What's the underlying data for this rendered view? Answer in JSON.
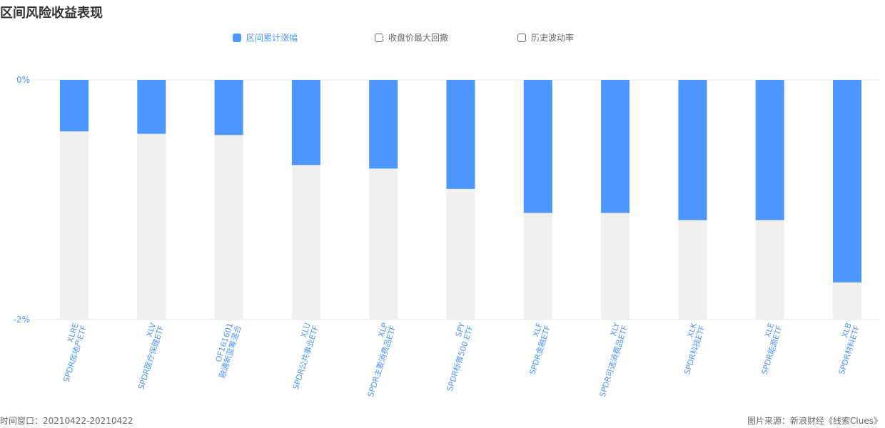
{
  "page": {
    "title": "区间风险收益表现",
    "footer_left": "时间窗口：20210422-20210422",
    "footer_right": "图片来源：新浪财经《线索Clues》"
  },
  "legend": [
    {
      "label": "区间累计涨幅",
      "active": true
    },
    {
      "label": "收盘价最大回撤",
      "active": false
    },
    {
      "label": "历史波动率",
      "active": false
    }
  ],
  "colors": {
    "bar": "#4d96ff",
    "bar_background": "#f0f0f0",
    "axis_text": "#4d96ff",
    "axis_line": "#d6e6f2"
  },
  "chart_data": {
    "type": "bar",
    "title": "",
    "ylabel": "",
    "xlabel": "",
    "ylim": [
      -2,
      0
    ],
    "y_ticks": [
      "0%",
      "-2%"
    ],
    "categories": [
      {
        "code": "XLRE",
        "name": "SPDR房地产ETF"
      },
      {
        "code": "XLV",
        "name": "SPDR医疗保健ETF"
      },
      {
        "code": "OF161601",
        "name": "融通新蓝筹混合"
      },
      {
        "code": "XLU",
        "name": "SPDR公共事业ETF"
      },
      {
        "code": "XLP",
        "name": "SPDR主要消费品ETF"
      },
      {
        "code": "SPY",
        "name": "SPDR标普500 ETF"
      },
      {
        "code": "XLF",
        "name": "SPDR金融ETF"
      },
      {
        "code": "XLY",
        "name": "SPDR可选消费品ETF"
      },
      {
        "code": "XLK",
        "name": "SPDR科技ETF"
      },
      {
        "code": "XLE",
        "name": "SPDR能源ETF"
      },
      {
        "code": "XLB",
        "name": "SPDR材料ETF"
      }
    ],
    "series": [
      {
        "values": [
          -0.43,
          -0.45,
          -0.46,
          -0.71,
          -0.74,
          -0.91,
          -1.11,
          -1.11,
          -1.17,
          -1.17,
          -1.69
        ],
        "labels": [
          "-0.43%",
          "-0.45%",
          "-0.46%",
          "-0.71%",
          "-0.74%",
          "-0.91%",
          "-1.11%",
          "-1.11%",
          "-1.17%",
          "-1.17%",
          "-1.69%"
        ]
      }
    ],
    "grid": false,
    "legend_position": "top"
  }
}
